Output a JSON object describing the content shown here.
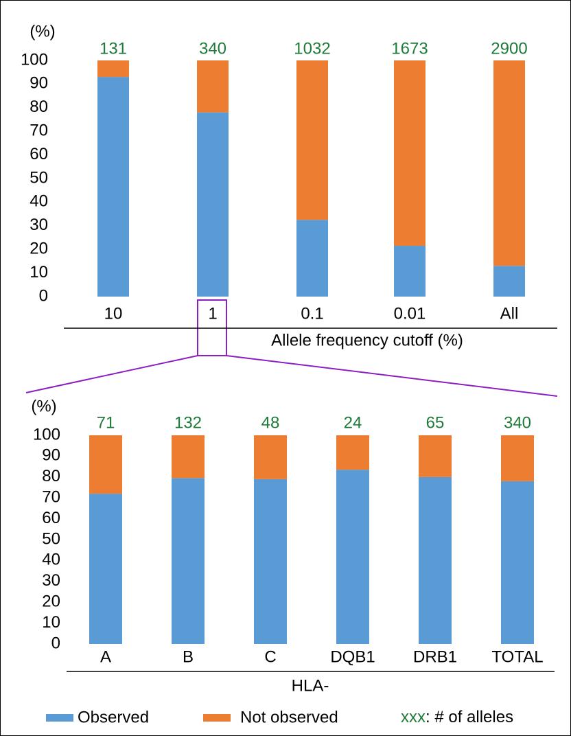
{
  "chart_data": [
    {
      "type": "stacked_bar",
      "y_label": "(%)",
      "x_label": "Allele frequency cutoff (%)",
      "categories": [
        "10",
        "1",
        "0.1",
        "0.01",
        "All"
      ],
      "allele_counts": [
        131,
        340,
        1032,
        1673,
        2900
      ],
      "series": [
        {
          "color": "#5b9bd5",
          "values": [
            93,
            78,
            32.5,
            21.5,
            13
          ]
        },
        {
          "color": "#ed7d31",
          "values": [
            7,
            22,
            67.5,
            78.5,
            87
          ]
        }
      ],
      "ylim": [
        0,
        100
      ],
      "yticks": [
        0,
        10,
        20,
        30,
        40,
        50,
        60,
        70,
        80,
        90,
        100
      ],
      "grid": false
    },
    {
      "type": "stacked_bar",
      "y_label": "(%)",
      "x_label": "HLA-",
      "categories": [
        "A",
        "B",
        "C",
        "DQB1",
        "DRB1",
        "TOTAL"
      ],
      "allele_counts": [
        71,
        132,
        48,
        24,
        65,
        340
      ],
      "series": [
        {
          "name": "Observed",
          "color": "#5b9bd5",
          "values": [
            72,
            79.5,
            79,
            83.5,
            80,
            78
          ]
        },
        {
          "name": "Not observed",
          "color": "#ed7d31",
          "values": [
            28,
            20.5,
            21,
            16.5,
            20,
            22
          ]
        }
      ],
      "ylim": [
        0,
        100
      ],
      "yticks": [
        0,
        10,
        20,
        30,
        40,
        50,
        60,
        70,
        80,
        90,
        100
      ],
      "grid": false
    }
  ],
  "legend_note": {
    "sample": "xxx",
    "text": ": # of alleles"
  }
}
